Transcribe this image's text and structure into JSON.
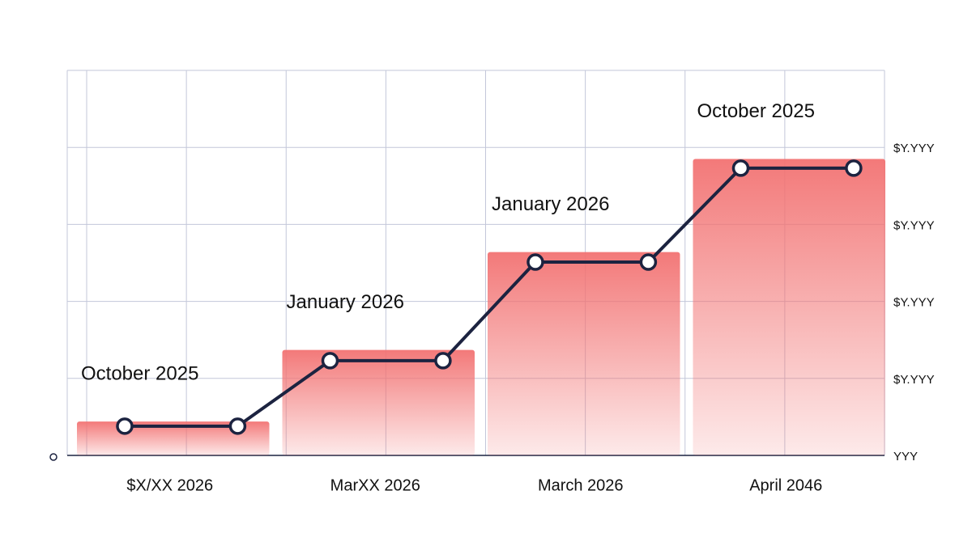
{
  "chart_data": {
    "type": "bar_step",
    "categories": [
      "$X/XX 2026",
      "MarXX 2026",
      "March 2026",
      "April 2046"
    ],
    "values": [
      0.44,
      1.37,
      2.64,
      3.85
    ],
    "bar_labels": [
      "October 2025",
      "January 2026",
      "January 2026",
      "October 2025"
    ],
    "color": "#f27272",
    "line": {
      "color": "#1c2340",
      "values": [
        0.38,
        0.38,
        1.23,
        1.23,
        2.51,
        2.51,
        3.73,
        3.73
      ]
    },
    "ylim": [
      0,
      5
    ],
    "yticks": [
      {
        "value": 0,
        "label": "YYY"
      },
      {
        "value": 1,
        "label": "$Y.YYY"
      },
      {
        "value": 2,
        "label": "$Y.YYY"
      },
      {
        "value": 3,
        "label": "$Y.YYY"
      },
      {
        "value": 4,
        "label": "$Y.YYY"
      }
    ],
    "grid": true
  }
}
